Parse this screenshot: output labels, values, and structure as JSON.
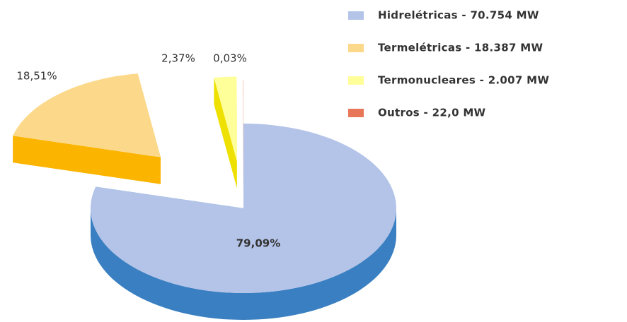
{
  "chart_data": {
    "type": "pie",
    "categories": [
      "Hidrelétricas - 70.754 MW",
      "Termelétricas - 18.387 MW",
      "Termonucleares - 2.007 MW",
      "Outros - 22,0 MW"
    ],
    "values": [
      79.09,
      18.51,
      2.37,
      0.03
    ],
    "value_labels": [
      "79,09%",
      "18,51%",
      "2,37%",
      "0,03%"
    ],
    "colors": [
      "#b4c4e8",
      "#fcd98a",
      "#ffff99",
      "#e8775a"
    ],
    "legend": "right"
  }
}
